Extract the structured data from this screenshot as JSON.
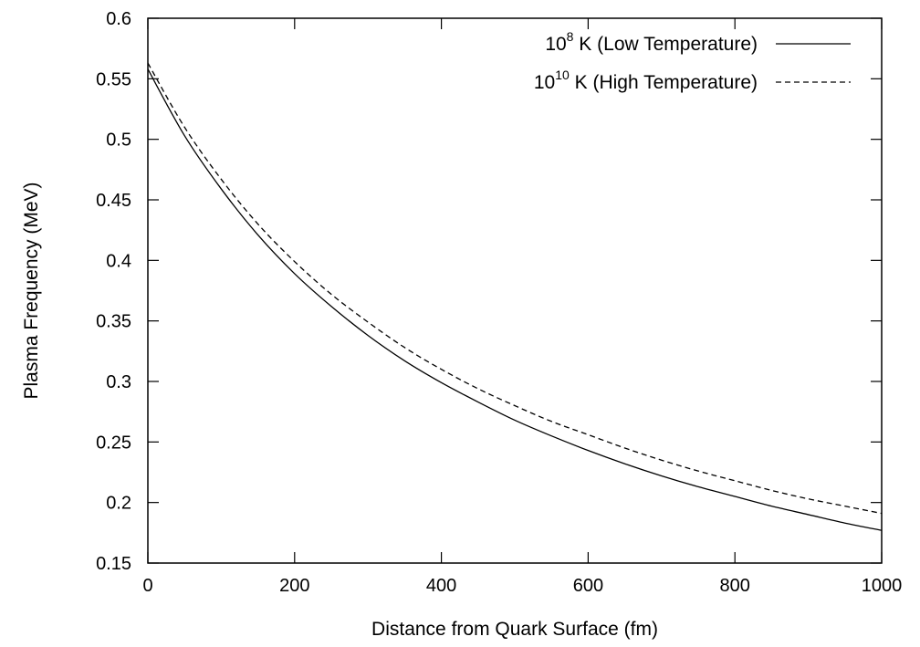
{
  "chart_data": {
    "type": "line",
    "title": "",
    "xlabel": "Distance from Quark Surface (fm)",
    "ylabel": "Plasma Frequency (MeV)",
    "xlim": [
      0,
      1000
    ],
    "ylim": [
      0.15,
      0.6
    ],
    "xticks": [
      0,
      200,
      400,
      600,
      800,
      1000
    ],
    "xtick_labels": [
      "0",
      "200",
      "400",
      "600",
      "800",
      "1000"
    ],
    "yticks": [
      0.15,
      0.2,
      0.25,
      0.3,
      0.35,
      0.4,
      0.45,
      0.5,
      0.55,
      0.6
    ],
    "ytick_labels": [
      "0.15",
      "0.2",
      "0.25",
      "0.3",
      "0.35",
      "0.4",
      "0.45",
      "0.5",
      "0.55",
      "0.6"
    ],
    "grid": false,
    "legend_position": "top-right",
    "series": [
      {
        "legend": {
          "base": "10",
          "exponent": "8",
          "text": " K (Low Temperature)"
        },
        "line_style": "solid",
        "color": "#000000",
        "x": [
          0,
          50,
          100,
          150,
          200,
          250,
          300,
          350,
          400,
          450,
          500,
          550,
          600,
          650,
          700,
          750,
          800,
          850,
          900,
          950,
          1000
        ],
        "y": [
          0.558,
          0.503,
          0.459,
          0.421,
          0.389,
          0.362,
          0.338,
          0.317,
          0.299,
          0.283,
          0.268,
          0.255,
          0.243,
          0.232,
          0.222,
          0.213,
          0.205,
          0.197,
          0.19,
          0.183,
          0.177
        ]
      },
      {
        "legend": {
          "base": "10",
          "exponent": "10",
          "text": " K (High Temperature)"
        },
        "line_style": "dashed",
        "color": "#000000",
        "x": [
          0,
          50,
          100,
          150,
          200,
          250,
          300,
          350,
          400,
          450,
          500,
          550,
          600,
          650,
          700,
          750,
          800,
          850,
          900,
          950,
          1000
        ],
        "y": [
          0.563,
          0.51,
          0.467,
          0.43,
          0.399,
          0.372,
          0.349,
          0.328,
          0.31,
          0.294,
          0.28,
          0.267,
          0.256,
          0.245,
          0.235,
          0.226,
          0.218,
          0.21,
          0.203,
          0.197,
          0.191
        ]
      }
    ]
  }
}
